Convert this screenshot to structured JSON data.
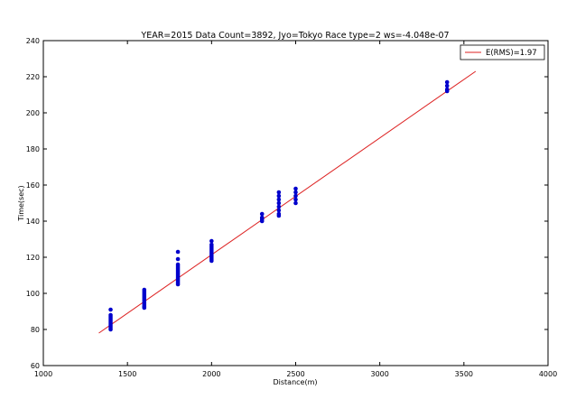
{
  "chart_data": {
    "type": "scatter",
    "title": "YEAR=2015 Data Count=3892, Jyo=Tokyo Race type=2 ws=-4.048e-07",
    "xlabel": "Distance(m)",
    "ylabel": "Time(sec)",
    "xlim": [
      1000,
      4000
    ],
    "ylim": [
      60,
      240
    ],
    "xticks": [
      1000,
      1500,
      2000,
      2500,
      3000,
      3500,
      4000
    ],
    "yticks": [
      60,
      80,
      100,
      120,
      140,
      160,
      180,
      200,
      220,
      240
    ],
    "grid": false,
    "legend_position": "top-right",
    "points_color": "#0000cc",
    "line_color": "#dd2222",
    "series": [
      {
        "type": "line",
        "name": "E(RMS)=1.97",
        "x": [
          1330,
          3570
        ],
        "y": [
          78,
          223
        ]
      },
      {
        "type": "scatter",
        "x": [
          1400,
          1400,
          1400,
          1400,
          1400,
          1400,
          1400,
          1400,
          1400,
          1400,
          1600,
          1600,
          1600,
          1600,
          1600,
          1600,
          1600,
          1600,
          1600,
          1600,
          1600,
          1600,
          1800,
          1800,
          1800,
          1800,
          1800,
          1800,
          1800,
          1800,
          1800,
          1800,
          1800,
          1800,
          1800,
          1800,
          2000,
          2000,
          2000,
          2000,
          2000,
          2000,
          2000,
          2000,
          2000,
          2000,
          2000,
          2300,
          2300,
          2300,
          2300,
          2400,
          2400,
          2400,
          2400,
          2400,
          2400,
          2400,
          2400,
          2500,
          2500,
          2500,
          2500,
          2500,
          3400,
          3400,
          3400,
          3400
        ],
        "y": [
          80,
          81,
          82,
          83,
          84,
          85,
          86,
          87,
          88,
          91,
          92,
          93,
          94,
          95,
          96,
          97,
          98,
          99,
          100,
          101,
          102,
          92.5,
          105,
          106,
          107,
          108,
          109,
          110,
          111,
          112,
          113,
          114,
          115,
          116,
          119,
          123,
          118,
          119,
          120,
          121,
          122,
          123,
          124,
          125,
          126,
          127,
          129,
          140,
          141,
          142,
          144,
          143,
          144,
          146,
          148,
          150,
          152,
          154,
          156,
          150,
          152,
          154,
          156,
          158,
          212,
          213,
          215,
          217
        ]
      }
    ]
  }
}
